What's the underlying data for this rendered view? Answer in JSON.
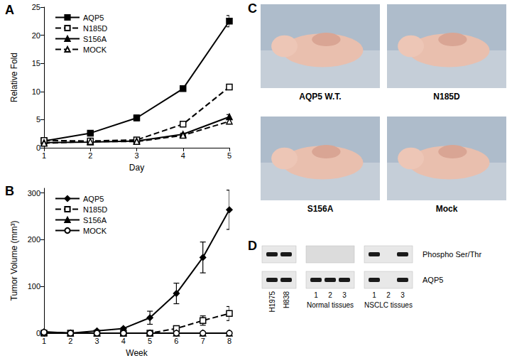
{
  "chart_data": [
    {
      "title": "A",
      "type": "line",
      "x_label": "Day",
      "y_label": "Relative Fold",
      "xlim": [
        1,
        5
      ],
      "xticks": [
        1,
        2,
        3,
        4,
        5
      ],
      "ylim": [
        0,
        25
      ],
      "yticks": [
        0,
        5,
        10,
        15,
        20,
        25
      ],
      "grid": false,
      "legend": "upper left",
      "x": [
        1,
        2,
        3,
        4,
        5
      ],
      "series": [
        {
          "name": "AQP5",
          "color": "#000000",
          "marker": "square",
          "line_style": "solid",
          "values": [
            1.2,
            2.6,
            5.3,
            10.5,
            22.5
          ],
          "errors": [
            0.3,
            0.3,
            0.5,
            0.4,
            1.0
          ]
        },
        {
          "name": "N185D",
          "color": "#000000",
          "marker": "open square",
          "line_style": "dashed",
          "values": [
            1.3,
            1.2,
            1.4,
            4.2,
            10.8
          ],
          "errors": [
            0.2,
            0.1,
            0.2,
            0.3,
            0.4
          ]
        },
        {
          "name": "S156A",
          "color": "#000000",
          "marker": "triangle",
          "line_style": "solid",
          "values": [
            0.9,
            1.0,
            1.2,
            2.4,
            5.5
          ],
          "errors": [
            0.1,
            0.1,
            0.1,
            0.2,
            0.4
          ]
        },
        {
          "name": "MOCK",
          "color": "#000000",
          "marker": "open triangle",
          "line_style": "dashed",
          "values": [
            0.8,
            1.1,
            1.1,
            2.2,
            4.7
          ],
          "errors": [
            0.1,
            0.1,
            0.2,
            0.2,
            0.3
          ]
        }
      ]
    },
    {
      "title": "B",
      "type": "line",
      "x_label": "Week",
      "y_label": "Tumor Volume (mm³)",
      "xlim": [
        1,
        8
      ],
      "xticks": [
        1,
        2,
        3,
        4,
        5,
        6,
        7,
        8
      ],
      "ylim": [
        0,
        310
      ],
      "yticks": [
        0,
        100,
        200,
        300
      ],
      "grid": false,
      "legend": "upper left",
      "x": [
        1,
        2,
        3,
        4,
        5,
        6,
        7,
        8
      ],
      "series": [
        {
          "name": "AQP5",
          "color": "#000000",
          "marker": "diamond",
          "line_style": "solid",
          "values": [
            3,
            0,
            5,
            10,
            33,
            85,
            162,
            264
          ],
          "errors": [
            0,
            0,
            1,
            2,
            14,
            22,
            33,
            42
          ]
        },
        {
          "name": "N185D",
          "color": "#000000",
          "marker": "open square",
          "line_style": "dashed",
          "values": [
            0,
            0,
            0,
            0,
            0,
            10,
            27,
            42
          ],
          "errors": [
            0,
            0,
            0,
            0,
            0,
            3,
            10,
            15
          ]
        },
        {
          "name": "S156A",
          "color": "#000000",
          "marker": "triangle",
          "line_style": "solid",
          "values": [
            2,
            0,
            0,
            0,
            0,
            0,
            0,
            0
          ],
          "errors": [
            0,
            0,
            0,
            0,
            0,
            0,
            0,
            0
          ]
        },
        {
          "name": "MOCK",
          "color": "#000000",
          "marker": "open circle",
          "line_style": "solid",
          "values": [
            2,
            0,
            0,
            0,
            0,
            0,
            0,
            0
          ],
          "errors": [
            0,
            0,
            0,
            0,
            0,
            0,
            0,
            0
          ]
        }
      ]
    }
  ],
  "photos": {
    "title": "C",
    "labels": [
      "AQP5 W.T.",
      "N185D",
      "S156A",
      "Mock"
    ]
  },
  "blot": {
    "title": "D",
    "rows": [
      "Phospho Ser/Thr",
      "AQP5"
    ],
    "groups": [
      {
        "lanes": [
          "H1975",
          "H838"
        ],
        "bands": [
          [
            true,
            true
          ],
          [
            true,
            true
          ]
        ]
      },
      {
        "label": "Normal tissues",
        "lanes": [
          "1",
          "2",
          "3"
        ],
        "bands": [
          [
            false,
            false,
            false
          ],
          [
            true,
            true,
            true
          ]
        ]
      },
      {
        "label": "NSCLC tissues",
        "lanes": [
          "1",
          "2",
          "3"
        ],
        "bands": [
          [
            true,
            false,
            true
          ],
          [
            true,
            false,
            true
          ]
        ]
      }
    ]
  }
}
